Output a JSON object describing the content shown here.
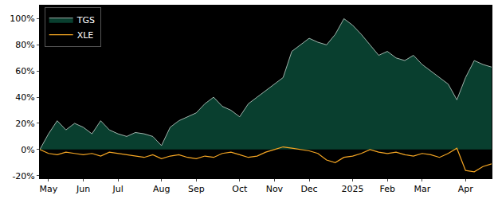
{
  "chart_data": {
    "type": "line",
    "categories": [
      null,
      "May",
      null,
      null,
      null,
      "Jun",
      null,
      null,
      null,
      "Jul",
      null,
      null,
      null,
      null,
      "Aug",
      null,
      null,
      null,
      "Sep",
      null,
      null,
      null,
      null,
      "Oct",
      null,
      null,
      null,
      "Nov",
      null,
      null,
      null,
      "Dec",
      null,
      null,
      null,
      null,
      "2025",
      null,
      null,
      null,
      "Feb",
      null,
      null,
      null,
      "Mar",
      null,
      null,
      null,
      null,
      "Apr",
      null,
      null,
      null
    ],
    "series": [
      {
        "name": "TGS",
        "color": "#c8d8d0",
        "values": [
          0,
          12,
          22,
          15,
          20,
          17,
          12,
          22,
          15,
          12,
          10,
          13,
          12,
          10,
          3,
          17,
          22,
          25,
          28,
          35,
          40,
          33,
          30,
          25,
          35,
          40,
          45,
          50,
          55,
          75,
          80,
          85,
          82,
          80,
          88,
          100,
          95,
          88,
          80,
          72,
          75,
          70,
          68,
          72,
          65,
          60,
          55,
          50,
          38,
          55,
          68,
          65,
          63
        ]
      },
      {
        "name": "XLE",
        "color": "#f5a623",
        "values": [
          0,
          -3,
          -4,
          -2,
          -3,
          -4,
          -3,
          -5,
          -2,
          -3,
          -4,
          -5,
          -6,
          -4,
          -7,
          -5,
          -4,
          -6,
          -7,
          -5,
          -6,
          -3,
          -2,
          -4,
          -6,
          -5,
          -2,
          0,
          2,
          1,
          0,
          -1,
          -3,
          -8,
          -10,
          -6,
          -5,
          -3,
          0,
          -2,
          -3,
          -2,
          -4,
          -5,
          -3,
          -4,
          -6,
          -3,
          1,
          -16,
          -17,
          -13,
          -11
        ]
      }
    ],
    "ylim": [
      -22,
      110
    ],
    "yticks": [
      {
        "value": -20,
        "label": "-20%"
      },
      {
        "value": 0,
        "label": "0%"
      },
      {
        "value": 20,
        "label": "20%"
      },
      {
        "value": 40,
        "label": "40%"
      },
      {
        "value": 60,
        "label": "60%"
      },
      {
        "value": 80,
        "label": "80%"
      },
      {
        "value": 100,
        "label": "100%"
      }
    ],
    "grid": false,
    "legend": "upper left"
  }
}
